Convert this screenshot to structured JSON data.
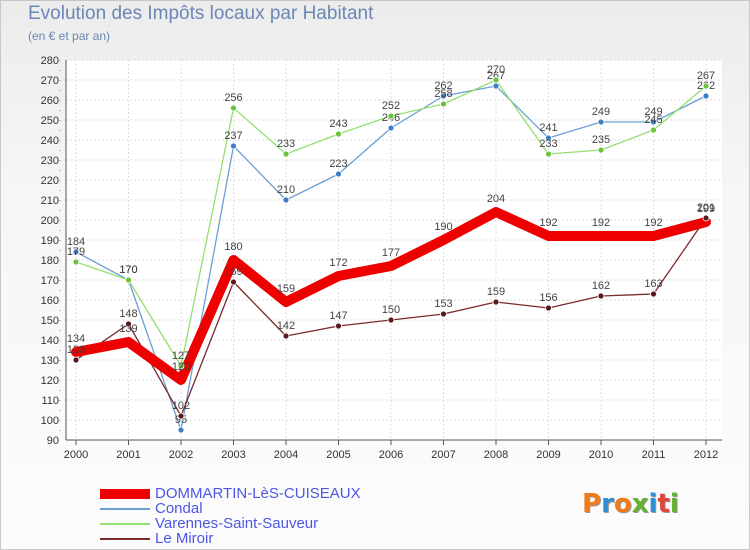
{
  "title": "Evolution des Impôts locaux par Habitant",
  "subtitle": "(en € et par an)",
  "logo": {
    "text": "Proxiti",
    "colors": [
      "#f07b1b",
      "#2f8fd6",
      "#f07b1b",
      "#62b22f",
      "#2f8fd6",
      "#e0453a",
      "#62b22f"
    ]
  },
  "chart_data": {
    "type": "line",
    "x": [
      "2000",
      "2001",
      "2002",
      "2003",
      "2004",
      "2005",
      "2006",
      "2007",
      "2008",
      "2009",
      "2010",
      "2011",
      "2012"
    ],
    "ylim": [
      90,
      280
    ],
    "yticks": [
      90,
      100,
      110,
      120,
      130,
      140,
      150,
      160,
      170,
      180,
      190,
      200,
      210,
      220,
      230,
      240,
      250,
      260,
      270,
      280
    ],
    "grid": true,
    "legend_position": "bottom-left",
    "series": [
      {
        "name": "Condal",
        "color": "#6c9fd4",
        "marker": "#3c7fc4",
        "values": [
          184,
          170,
          95,
          237,
          210,
          223,
          246,
          262,
          267,
          241,
          249,
          249,
          262
        ]
      },
      {
        "name": "Varennes-Saint-Sauveur",
        "color": "#94e070",
        "marker": "#6cc43c",
        "values": [
          179,
          170,
          127,
          256,
          233,
          243,
          252,
          258,
          270,
          233,
          235,
          245,
          267
        ]
      },
      {
        "name": "Le Miroir",
        "color": "#7a2a2a",
        "marker": "#5a1a1a",
        "values": [
          130,
          148,
          102,
          169,
          142,
          147,
          150,
          153,
          159,
          156,
          162,
          163,
          201
        ]
      },
      {
        "name": "DOMMARTIN-LèS-CUISEAUX",
        "color": "#ee0000",
        "marker": "#ee0000",
        "values": [
          134,
          139,
          120,
          180,
          159,
          172,
          177,
          190,
          204,
          192,
          192,
          192,
          199
        ]
      }
    ]
  }
}
